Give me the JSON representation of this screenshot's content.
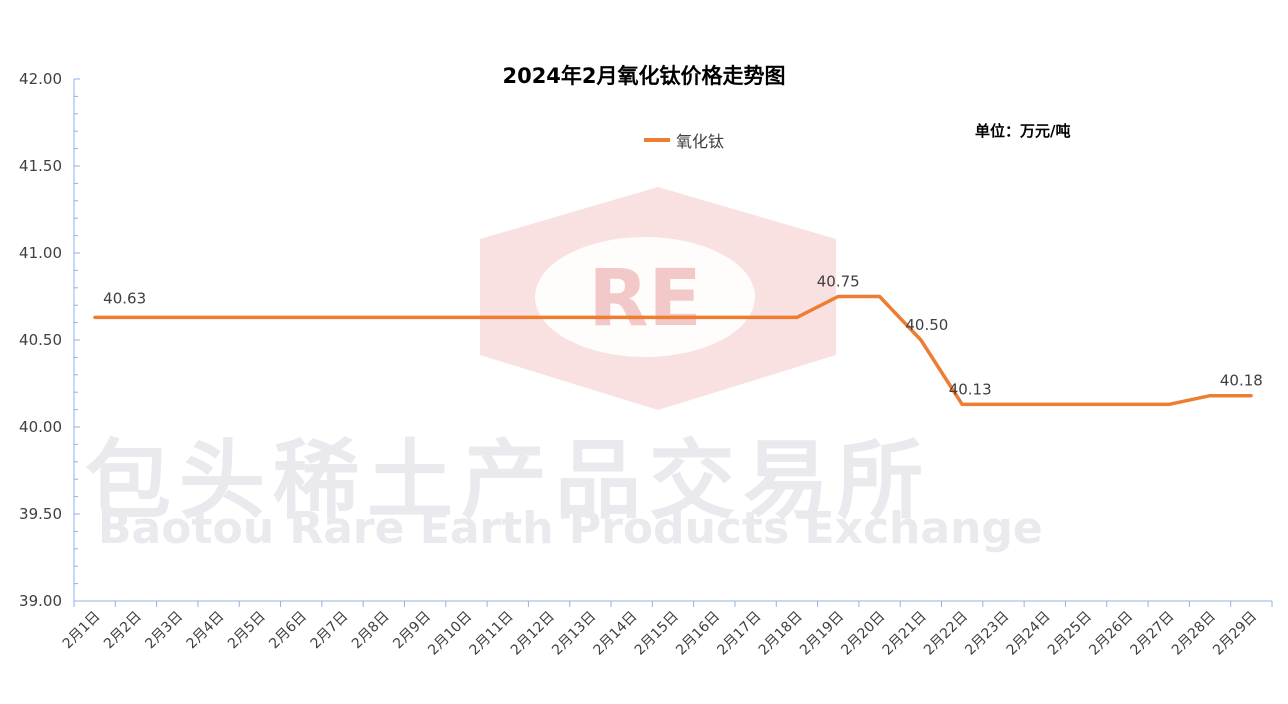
{
  "chart_data": {
    "type": "line",
    "title": "2024年2月氧化钛价格走势图",
    "unit_note": "单位：万元/吨",
    "categories": [
      "2月1日",
      "2月2日",
      "2月3日",
      "2月4日",
      "2月5日",
      "2月6日",
      "2月7日",
      "2月8日",
      "2月9日",
      "2月10日",
      "2月11日",
      "2月12日",
      "2月13日",
      "2月14日",
      "2月15日",
      "2月16日",
      "2月17日",
      "2月18日",
      "2月19日",
      "2月20日",
      "2月21日",
      "2月22日",
      "2月23日",
      "2月24日",
      "2月25日",
      "2月26日",
      "2月27日",
      "2月28日",
      "2月29日"
    ],
    "series": [
      {
        "name": "氧化钛",
        "color": "#ED7D31",
        "values": [
          40.63,
          40.63,
          40.63,
          40.63,
          40.63,
          40.63,
          40.63,
          40.63,
          40.63,
          40.63,
          40.63,
          40.63,
          40.63,
          40.63,
          40.63,
          40.63,
          40.63,
          40.63,
          40.75,
          40.75,
          40.5,
          40.13,
          40.13,
          40.13,
          40.13,
          40.13,
          40.13,
          40.18,
          40.18
        ]
      }
    ],
    "data_labels": [
      {
        "index": 0,
        "text": "40.63"
      },
      {
        "index": 18,
        "text": "40.75"
      },
      {
        "index": 20,
        "text": "40.50"
      },
      {
        "index": 21,
        "text": "40.13"
      },
      {
        "index": 28,
        "text": "40.18"
      }
    ],
    "ylim": [
      39.0,
      42.0
    ],
    "yticks": [
      "39.00",
      "39.50",
      "40.00",
      "40.50",
      "41.00",
      "41.50",
      "42.00"
    ],
    "grid": false,
    "legend_position": "top-center"
  },
  "watermark": {
    "cn": "包头稀土产品交易所",
    "en": "Baotou Rare Earth Products Exchange",
    "logo_text": "RE"
  }
}
